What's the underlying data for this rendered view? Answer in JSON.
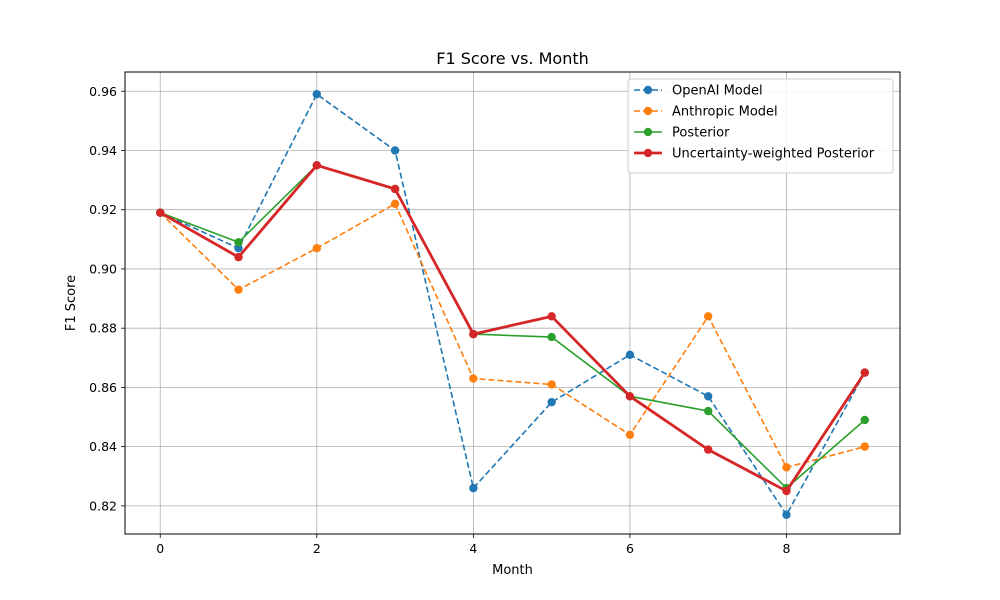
{
  "chart_data": {
    "type": "line",
    "title": "F1 Score vs. Month",
    "xlabel": "Month",
    "ylabel": "F1 Score",
    "xlim": [
      -0.45,
      9.45
    ],
    "ylim": [
      0.8105,
      0.9665
    ],
    "xticks": [
      0,
      2,
      4,
      6,
      8
    ],
    "yticks": [
      0.82,
      0.84,
      0.86,
      0.88,
      0.9,
      0.92,
      0.94,
      0.96
    ],
    "ytick_labels": [
      "0.82",
      "0.84",
      "0.86",
      "0.88",
      "0.90",
      "0.92",
      "0.94",
      "0.96"
    ],
    "grid": true,
    "legend_position": "top-right",
    "x": [
      0,
      1,
      2,
      3,
      4,
      5,
      6,
      7,
      8,
      9
    ],
    "series": [
      {
        "name": "OpenAI Model",
        "color": "#1f77b4",
        "dashed": true,
        "thick": false,
        "values": [
          0.919,
          0.907,
          0.959,
          0.94,
          0.826,
          0.855,
          0.871,
          0.857,
          0.817,
          0.865
        ]
      },
      {
        "name": "Anthropic Model",
        "color": "#ff7f0e",
        "dashed": true,
        "thick": false,
        "values": [
          0.919,
          0.893,
          0.907,
          0.922,
          0.863,
          0.861,
          0.844,
          0.884,
          0.833,
          0.84
        ]
      },
      {
        "name": "Posterior",
        "color": "#2ca02c",
        "dashed": false,
        "thick": false,
        "values": [
          0.919,
          0.909,
          0.935,
          0.927,
          0.878,
          0.877,
          0.857,
          0.852,
          0.826,
          0.849
        ]
      },
      {
        "name": "Uncertainty-weighted Posterior",
        "color": "#d62728",
        "dashed": false,
        "thick": true,
        "values": [
          0.919,
          0.904,
          0.935,
          0.927,
          0.878,
          0.884,
          0.857,
          0.839,
          0.825,
          0.865
        ]
      }
    ]
  }
}
